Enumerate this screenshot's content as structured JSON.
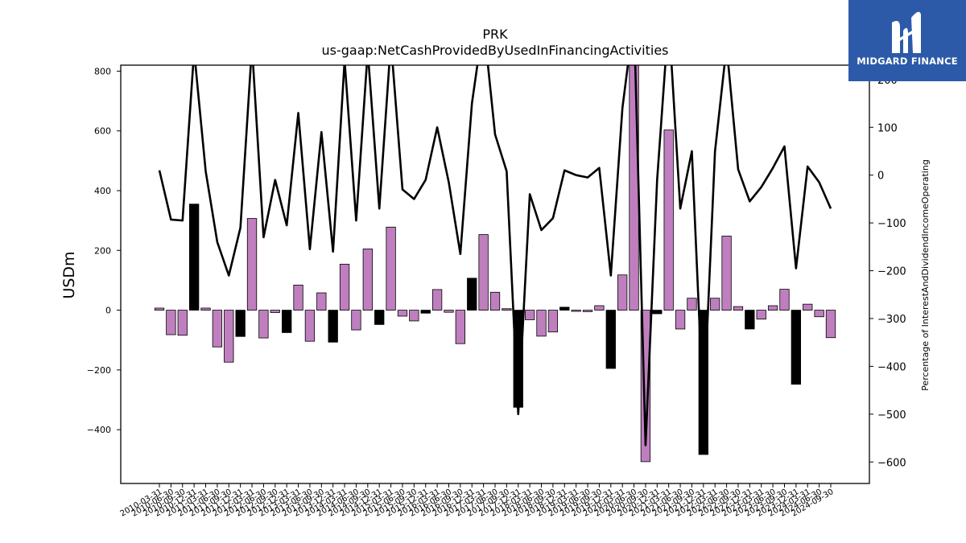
{
  "logo": {
    "text": "MIDGARD FINANCE",
    "bg_color": "#2c5aa8"
  },
  "chart_data": {
    "type": "bar",
    "title": "PRK",
    "subtitle": "us-gaap:NetCashProvidedByUsedInFinancingActivities",
    "ylabel": "USDm",
    "y2label": "Percentage of InterestAndDividendIncomeOperating",
    "ylim": [
      -580,
      820
    ],
    "y2lim": [
      -645,
      230
    ],
    "yticks": [
      -400,
      -200,
      0,
      200,
      400,
      600,
      800
    ],
    "y2ticks": [
      -600,
      -500,
      -400,
      -300,
      -200,
      -100,
      0,
      100,
      200
    ],
    "categories": [
      "2010-03-31",
      "2010-06-30",
      "2010-09-30",
      "2010-12-31",
      "2011-03-31",
      "2011-06-30",
      "2011-09-30",
      "2011-12-31",
      "2012-03-31",
      "2012-06-30",
      "2012-09-30",
      "2012-12-31",
      "2013-03-31",
      "2013-06-30",
      "2013-09-30",
      "2013-12-31",
      "2014-03-31",
      "2014-06-30",
      "2014-09-30",
      "2014-12-31",
      "2015-03-31",
      "2015-06-30",
      "2015-09-30",
      "2015-12-31",
      "2016-03-31",
      "2016-06-30",
      "2016-09-30",
      "2016-12-31",
      "2017-03-31",
      "2017-06-30",
      "2017-09-30",
      "2017-12-31",
      "2018-03-31",
      "2018-06-30",
      "2018-09-30",
      "2018-12-31",
      "2019-03-31",
      "2019-06-30",
      "2019-09-30",
      "2019-12-31",
      "2020-03-31",
      "2020-06-30",
      "2020-09-30",
      "2020-12-31",
      "2021-03-31",
      "2021-06-30",
      "2021-09-30",
      "2021-12-31",
      "2022-03-31",
      "2022-06-30",
      "2022-09-30",
      "2022-12-31",
      "2023-03-31",
      "2023-06-30",
      "2023-09-30",
      "2023-12-31",
      "2024-03-31",
      "2024-06-30",
      "2024-09-30"
    ],
    "series": [
      {
        "type": "bar",
        "axis": "left",
        "values": [
          7,
          -82,
          -84,
          355,
          7,
          -123,
          -174,
          -88,
          307,
          -93,
          -8,
          -75,
          84,
          -104,
          58,
          -107,
          154,
          -66,
          205,
          -48,
          278,
          -20,
          -36,
          -10,
          69,
          -7,
          -112,
          107,
          253,
          60,
          5,
          -325,
          -32,
          -87,
          -73,
          10,
          -4,
          -5,
          15,
          -195,
          118,
          820,
          -507,
          -12,
          603,
          -63,
          40,
          -483,
          40,
          248,
          12,
          -63,
          -30,
          15,
          70,
          -248,
          20,
          -22,
          -92
        ],
        "color_positive": "#bf7fbf",
        "color_negative": "#bf7fbf",
        "highlight_color": "#000000",
        "highlight_indices": [
          3,
          7,
          11,
          15,
          19,
          23,
          27,
          31,
          35,
          39,
          43,
          47,
          51,
          55
        ]
      },
      {
        "type": "line",
        "axis": "right",
        "color": "#000000",
        "values": [
          10,
          -93,
          -95,
          260,
          8,
          -140,
          -210,
          -110,
          270,
          -130,
          -10,
          -105,
          130,
          -155,
          90,
          -160,
          240,
          -95,
          260,
          -70,
          280,
          -30,
          -50,
          -10,
          100,
          -15,
          -165,
          150,
          320,
          85,
          8,
          -500,
          -40,
          -115,
          -90,
          10,
          0,
          -5,
          15,
          -210,
          140,
          330,
          -565,
          -10,
          330,
          -70,
          50,
          -500,
          50,
          270,
          12,
          -55,
          -25,
          15,
          60,
          -195,
          18,
          -15,
          -70
        ]
      }
    ]
  }
}
